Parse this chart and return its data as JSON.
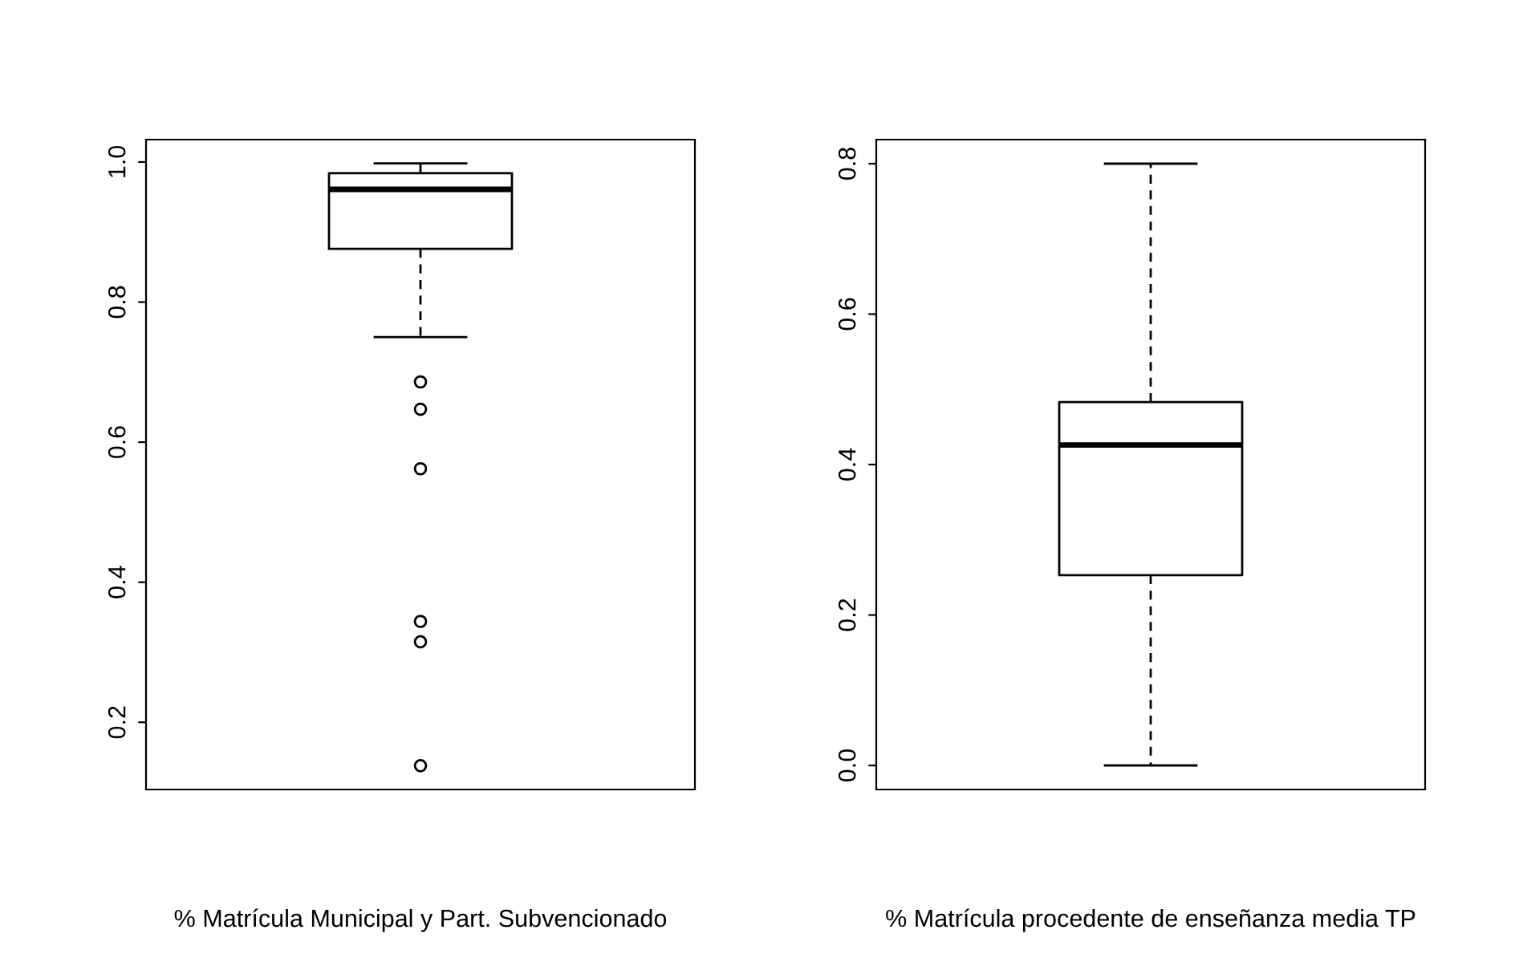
{
  "chart_data": [
    {
      "type": "box",
      "xlabel": "% Matrícula Municipal y Part. Subvencionado",
      "categories": [
        null
      ],
      "boxes": [
        {
          "low": 0.75,
          "q1": 0.876,
          "median": 0.961,
          "q3": 0.984,
          "high": 0.998,
          "outliers": [
            0.686,
            0.647,
            0.562,
            0.344,
            0.315,
            0.138
          ]
        }
      ],
      "ylim": [
        0.104,
        1.032
      ],
      "yticks": [
        0.2,
        0.4,
        0.6,
        0.8,
        {
          "value": 1,
          "label": "1.0"
        }
      ],
      "grid": false,
      "legend": false
    },
    {
      "type": "box",
      "xlabel": "% Matrícula procedente de enseñanza media TP",
      "categories": [
        null
      ],
      "boxes": [
        {
          "low": 0.0,
          "q1": 0.253,
          "median": 0.426,
          "q3": 0.483,
          "high": 0.8
        }
      ],
      "ylim": [
        -0.032,
        0.832
      ],
      "yticks": [
        {
          "value": 0,
          "label": "0.0"
        },
        0.2,
        0.4,
        0.6,
        0.8
      ],
      "grid": false,
      "legend": false
    }
  ]
}
